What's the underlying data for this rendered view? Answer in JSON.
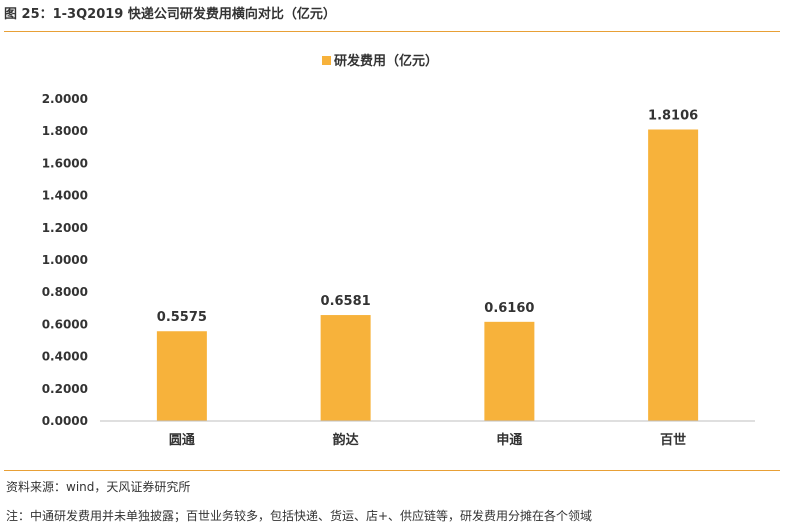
{
  "figure": {
    "title": "图 25：1-3Q2019 快递公司研发费用横向对比（亿元）",
    "source": "资料来源：wind，天风证券研究所",
    "note": "注：中通研发费用并未单独披露；百世业务较多，包括快递、货运、店+、供应链等，研发费用分摊在各个领域"
  },
  "colors": {
    "bar": "#F7B23B",
    "rule": "#E8A036",
    "axis": "#BFBFBF"
  },
  "chart_data": {
    "type": "bar",
    "title": "",
    "categories": [
      "圆通",
      "韵达",
      "申通",
      "百世"
    ],
    "series": [
      {
        "name": "研发费用（亿元）",
        "values": [
          0.5575,
          0.6581,
          0.616,
          1.8106
        ]
      }
    ],
    "data_labels": [
      "0.5575",
      "0.6581",
      "0.6160",
      "1.8106"
    ],
    "ylim": [
      0,
      2
    ],
    "yticks": [
      "0.0000",
      "0.2000",
      "0.4000",
      "0.6000",
      "0.8000",
      "1.0000",
      "1.2000",
      "1.4000",
      "1.6000",
      "1.8000",
      "2.0000"
    ],
    "grid": false,
    "legend": "top-center",
    "xlabel": "",
    "ylabel": ""
  }
}
